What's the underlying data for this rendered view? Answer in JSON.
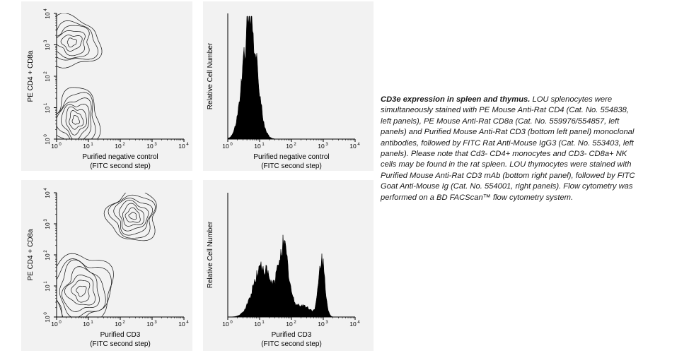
{
  "caption": {
    "title": "CD3e expression in spleen and thymus.",
    "body": " LOU splenocytes were simultaneously stained with PE Mouse Anti-Rat CD4 (Cat. No. 554838, left panels), PE Mouse Anti-Rat CD8a (Cat. No. 559976/554857, left panels) and Purified Mouse Anti-Rat CD3 (bottom left panel) monoclonal antibodies, followed by FITC Rat Anti-Mouse IgG3 (Cat. No. 553403, left panels). Please note that Cd3- CD4+ monocytes and CD3- CD8a+ NK cells may be found in the rat spleen. LOU thymocytes were stained with Purified Mouse Anti-Rat CD3 mAb (bottom right panel), followed by FITC Goat Anti-Mouse Ig (Cat. No. 554001, right panels). Flow cytometry was performed on a BD FACScan™ flow cytometry system."
  },
  "chart_data": [
    {
      "type": "contour",
      "xscale": "log",
      "yscale": "log",
      "xlim": [
        1,
        10000
      ],
      "ylim": [
        1,
        10000
      ],
      "xticks": [
        {
          "base": "10",
          "exp": "0"
        },
        {
          "base": "10",
          "exp": "1"
        },
        {
          "base": "10",
          "exp": "2"
        },
        {
          "base": "10",
          "exp": "3"
        },
        {
          "base": "10",
          "exp": "4"
        }
      ],
      "yticks": [
        {
          "base": "10",
          "exp": "0"
        },
        {
          "base": "10",
          "exp": "1"
        },
        {
          "base": "10",
          "exp": "2"
        },
        {
          "base": "10",
          "exp": "3"
        },
        {
          "base": "10",
          "exp": "4"
        }
      ],
      "xlabel": "Purified negative control",
      "xlabel2": "(FITC second step)",
      "ylabel": "PE CD4 + CD8a",
      "populations": [
        {
          "x": 4,
          "y": 4,
          "spread_x": 1.6,
          "spread_y": 2.2,
          "levels": 7
        },
        {
          "x": 3,
          "y": 1200,
          "spread_x": 2.0,
          "spread_y": 1.7,
          "levels": 6
        }
      ]
    },
    {
      "type": "histogram",
      "xscale": "log",
      "xlim": [
        1,
        10000
      ],
      "xticks": [
        {
          "base": "10",
          "exp": "0"
        },
        {
          "base": "10",
          "exp": "1"
        },
        {
          "base": "10",
          "exp": "2"
        },
        {
          "base": "10",
          "exp": "3"
        },
        {
          "base": "10",
          "exp": "4"
        }
      ],
      "xlabel": "Purified negative control",
      "xlabel2": "(FITC second step)",
      "ylabel": "Relative Cell Number",
      "ymax": 100,
      "peaks": [
        {
          "x": 5,
          "height": 100,
          "width_log": 0.22
        }
      ]
    },
    {
      "type": "contour",
      "xscale": "log",
      "yscale": "log",
      "xlim": [
        1,
        10000
      ],
      "ylim": [
        1,
        10000
      ],
      "xticks": [
        {
          "base": "10",
          "exp": "0"
        },
        {
          "base": "10",
          "exp": "1"
        },
        {
          "base": "10",
          "exp": "2"
        },
        {
          "base": "10",
          "exp": "3"
        },
        {
          "base": "10",
          "exp": "4"
        }
      ],
      "yticks": [
        {
          "base": "10",
          "exp": "0"
        },
        {
          "base": "10",
          "exp": "1"
        },
        {
          "base": "10",
          "exp": "2"
        },
        {
          "base": "10",
          "exp": "3"
        },
        {
          "base": "10",
          "exp": "4"
        }
      ],
      "xlabel": "Purified CD3",
      "xlabel2": "(FITC second step)",
      "ylabel": "PE CD4 + CD8a",
      "populations": [
        {
          "x": 6,
          "y": 7,
          "spread_x": 2.2,
          "spread_y": 2.6,
          "levels": 7
        },
        {
          "x": 250,
          "y": 1800,
          "spread_x": 1.8,
          "spread_y": 1.7,
          "levels": 7
        }
      ]
    },
    {
      "type": "histogram",
      "xscale": "log",
      "xlim": [
        1,
        10000
      ],
      "xticks": [
        {
          "base": "10",
          "exp": "0"
        },
        {
          "base": "10",
          "exp": "1"
        },
        {
          "base": "10",
          "exp": "2"
        },
        {
          "base": "10",
          "exp": "3"
        },
        {
          "base": "10",
          "exp": "4"
        }
      ],
      "xlabel": "Purified CD3",
      "xlabel2": "(FITC second step)",
      "ylabel": "Relative Cell Number",
      "ymax": 100,
      "peaks": [
        {
          "x": 12,
          "height": 43,
          "width_log": 0.28
        },
        {
          "x": 55,
          "height": 58,
          "width_log": 0.16
        },
        {
          "x": 200,
          "height": 10,
          "width_log": 0.3
        },
        {
          "x": 900,
          "height": 47,
          "width_log": 0.1
        }
      ]
    }
  ]
}
